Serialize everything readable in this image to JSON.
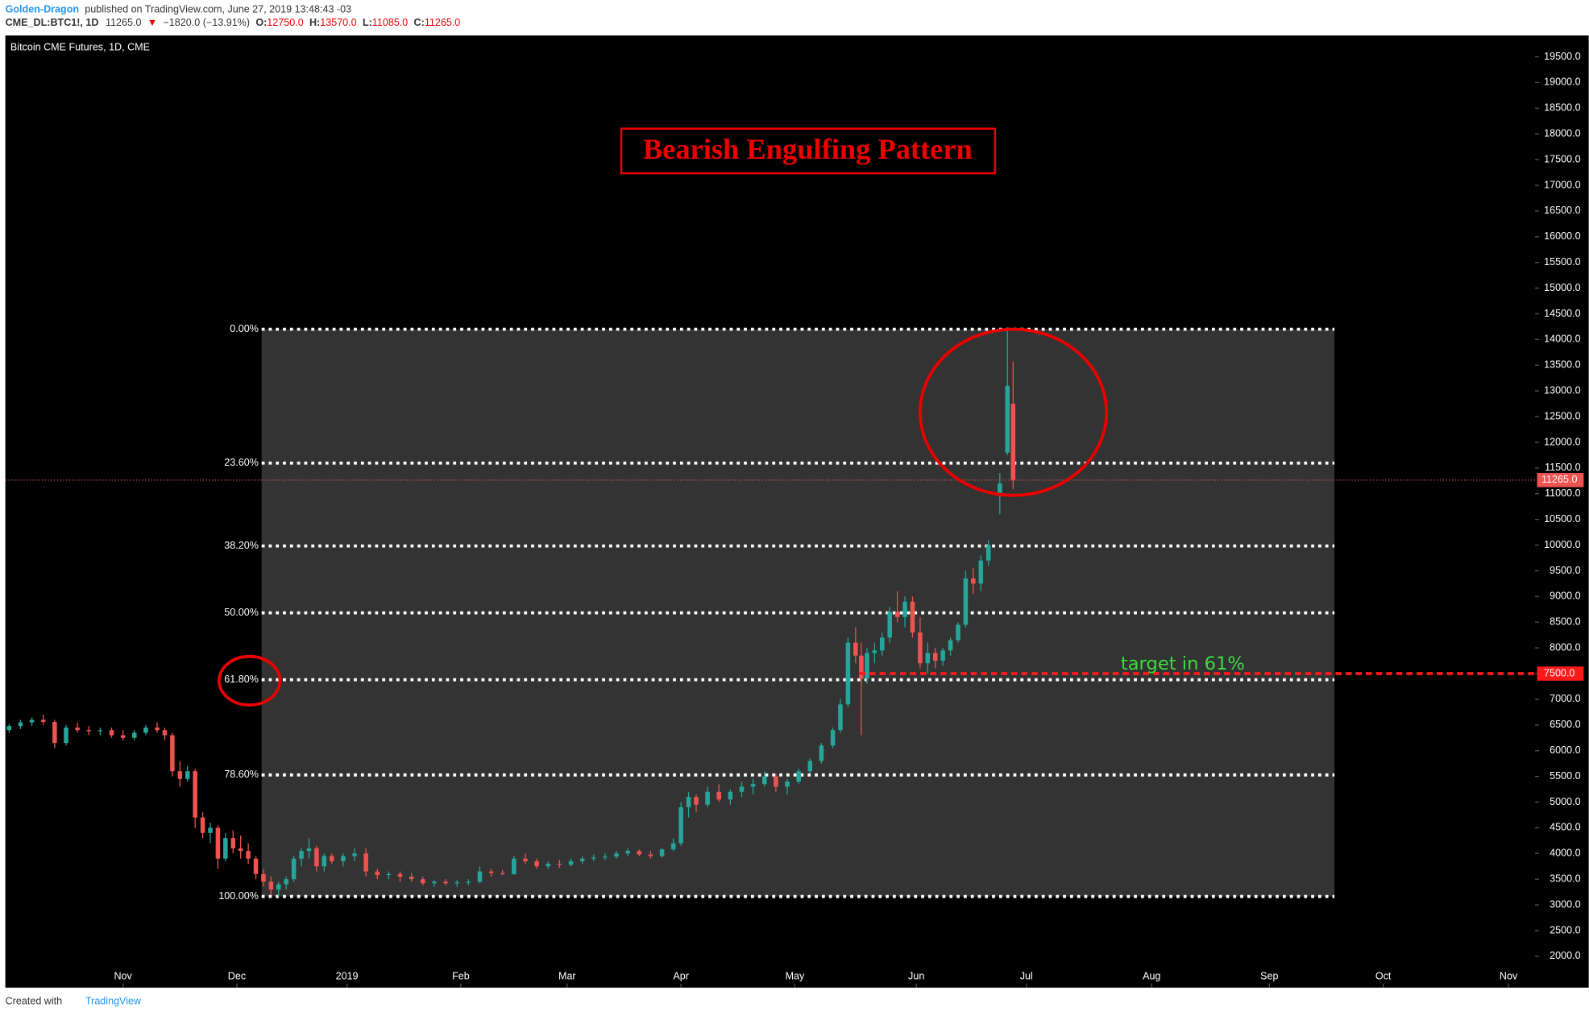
{
  "header": {
    "author": "Golden-Dragon",
    "published": "published on TradingView.com, June 27, 2019 13:48:43 -03",
    "symbol": "CME_DL:BTC1!, 1D",
    "last": "11265.0",
    "direction": "▼",
    "change": "−1820.0 (−13.91%)",
    "o_label": "O:",
    "o": "12750.0",
    "h_label": "H:",
    "h": "13570.0",
    "l_label": "L:",
    "l": "11085.0",
    "c_label": "C:",
    "c": "11265.0"
  },
  "footer": {
    "created": "Created with",
    "brand": "TradingView"
  },
  "chart_data": {
    "type": "candlestick",
    "title": "Bitcoin CME Futures, 1D, CME",
    "annotation": "Bearish Engulfing Pattern",
    "up_color": "#26a69a",
    "down_color": "#ef5350",
    "grid": false,
    "xlim": [
      -31,
      372
    ],
    "ylim": [
      1390,
      19915
    ],
    "xticks": [
      {
        "value": 0,
        "label": "Nov"
      },
      {
        "value": 30,
        "label": "Dec"
      },
      {
        "value": 59,
        "label": "2019"
      },
      {
        "value": 89,
        "label": "Feb"
      },
      {
        "value": 117,
        "label": "Mar"
      },
      {
        "value": 147,
        "label": "Apr"
      },
      {
        "value": 177,
        "label": "May"
      },
      {
        "value": 209,
        "label": "Jun"
      },
      {
        "value": 238,
        "label": "Jul"
      },
      {
        "value": 271,
        "label": "Aug"
      },
      {
        "value": 302,
        "label": "Sep"
      },
      {
        "value": 332,
        "label": "Oct"
      },
      {
        "value": 365,
        "label": "Nov"
      }
    ],
    "yticks": [
      {
        "value": 2000,
        "label": "2000.0"
      },
      {
        "value": 2500,
        "label": "2500.0"
      },
      {
        "value": 3000,
        "label": "3000.0"
      },
      {
        "value": 3500,
        "label": "3500.0"
      },
      {
        "value": 4000,
        "label": "4000.0"
      },
      {
        "value": 4500,
        "label": "4500.0"
      },
      {
        "value": 5000,
        "label": "5000.0"
      },
      {
        "value": 5500,
        "label": "5500.0"
      },
      {
        "value": 6000,
        "label": "6000.0"
      },
      {
        "value": 6500,
        "label": "6500.0"
      },
      {
        "value": 7000,
        "label": "7000.0"
      },
      {
        "value": 7500,
        "label": "7500.0"
      },
      {
        "value": 8000,
        "label": "8000.0"
      },
      {
        "value": 8500,
        "label": "8500.0"
      },
      {
        "value": 9000,
        "label": "9000.0"
      },
      {
        "value": 9500,
        "label": "9500.0"
      },
      {
        "value": 10000,
        "label": "10000.0"
      },
      {
        "value": 10500,
        "label": "10500.0"
      },
      {
        "value": 11000,
        "label": "11000.0"
      },
      {
        "value": 11500,
        "label": "11500.0"
      },
      {
        "value": 12000,
        "label": "12000.0"
      },
      {
        "value": 12500,
        "label": "12500.0"
      },
      {
        "value": 13000,
        "label": "13000.0"
      },
      {
        "value": 13500,
        "label": "13500.0"
      },
      {
        "value": 14000,
        "label": "14000.0"
      },
      {
        "value": 14500,
        "label": "14500.0"
      },
      {
        "value": 15000,
        "label": "15000.0"
      },
      {
        "value": 15500,
        "label": "15500.0"
      },
      {
        "value": 16000,
        "label": "16000.0"
      },
      {
        "value": 16500,
        "label": "16500.0"
      },
      {
        "value": 17000,
        "label": "17000.0"
      },
      {
        "value": 17500,
        "label": "17500.0"
      },
      {
        "value": 18000,
        "label": "18000.0"
      },
      {
        "value": 18500,
        "label": "18500.0"
      },
      {
        "value": 19000,
        "label": "19000.0"
      },
      {
        "value": 19500,
        "label": "19500.0"
      }
    ],
    "x": [
      -30,
      -27,
      -24,
      -21,
      -18,
      -15,
      -12,
      -9,
      -6,
      -3,
      0,
      3,
      6,
      9,
      11,
      13,
      15,
      17,
      19,
      21,
      23,
      25,
      27,
      29,
      31,
      33,
      35,
      37,
      39,
      41,
      43,
      45,
      47,
      49,
      51,
      53,
      55,
      58,
      61,
      64,
      67,
      70,
      73,
      76,
      79,
      82,
      85,
      88,
      91,
      94,
      97,
      100,
      103,
      106,
      109,
      112,
      115,
      118,
      121,
      124,
      127,
      130,
      133,
      136,
      139,
      142,
      145,
      147,
      149,
      151,
      154,
      157,
      160,
      163,
      166,
      169,
      172,
      175,
      178,
      181,
      184,
      187,
      189,
      191,
      193,
      194.5,
      196,
      198,
      200,
      202,
      204,
      206,
      208,
      210,
      212,
      214,
      216,
      218,
      220,
      222,
      224,
      226,
      228,
      231,
      233,
      234.5
    ],
    "open": [
      6400,
      6480,
      6550,
      6600,
      6560,
      6150,
      6450,
      6400,
      6380,
      6400,
      6300,
      6250,
      6350,
      6450,
      6400,
      6300,
      5600,
      5450,
      5600,
      4700,
      4400,
      4500,
      3900,
      4300,
      4100,
      4050,
      3900,
      3600,
      3450,
      3300,
      3400,
      3500,
      3900,
      4050,
      4100,
      3750,
      3950,
      3850,
      3950,
      4000,
      3650,
      3580,
      3600,
      3550,
      3500,
      3420,
      3450,
      3420,
      3440,
      3450,
      3650,
      3620,
      3600,
      3900,
      3850,
      3750,
      3800,
      3780,
      3850,
      3900,
      3920,
      3940,
      4000,
      4050,
      3980,
      3950,
      4080,
      4200,
      4900,
      5100,
      4950,
      5200,
      5050,
      5200,
      5300,
      5350,
      5500,
      5300,
      5400,
      5600,
      5800,
      6100,
      6400,
      6900,
      8100,
      7850,
      7400,
      7900,
      7950,
      8200,
      8700,
      8600,
      8900,
      8300,
      7700,
      7900,
      7750,
      7950,
      8150,
      8450,
      9350,
      9250,
      9700,
      10950,
      11800,
      12750
    ],
    "high": [
      6520,
      6600,
      6650,
      6700,
      6600,
      6500,
      6550,
      6480,
      6450,
      6450,
      6400,
      6400,
      6500,
      6550,
      6450,
      6350,
      5800,
      5700,
      5650,
      4800,
      4600,
      4550,
      4400,
      4450,
      4350,
      4200,
      3950,
      3700,
      3550,
      3450,
      3550,
      3950,
      4100,
      4300,
      4150,
      4000,
      4000,
      4000,
      4100,
      4100,
      3700,
      3650,
      3650,
      3620,
      3550,
      3480,
      3500,
      3480,
      3500,
      3750,
      3700,
      3680,
      3950,
      4000,
      3900,
      3850,
      3880,
      3900,
      3950,
      3980,
      4000,
      4050,
      4100,
      4080,
      4050,
      4100,
      4300,
      5000,
      5200,
      5150,
      5300,
      5350,
      5250,
      5400,
      5450,
      5600,
      5550,
      5450,
      5650,
      5850,
      6150,
      6450,
      7000,
      8200,
      8400,
      8100,
      8000,
      8100,
      8300,
      8800,
      9100,
      9000,
      9000,
      8600,
      8100,
      8000,
      8000,
      8200,
      8500,
      9500,
      9550,
      9800,
      10100,
      11400,
      14200,
      13570
    ],
    "low": [
      6350,
      6420,
      6480,
      6500,
      6050,
      6100,
      6350,
      6300,
      6300,
      6250,
      6200,
      6200,
      6300,
      6350,
      6200,
      5500,
      5300,
      5400,
      4500,
      4300,
      4200,
      3700,
      3850,
      4000,
      3900,
      3800,
      3500,
      3350,
      3200,
      3150,
      3300,
      3450,
      3750,
      3900,
      3650,
      3650,
      3800,
      3750,
      3850,
      3550,
      3500,
      3500,
      3450,
      3450,
      3380,
      3350,
      3380,
      3350,
      3380,
      3420,
      3550,
      3580,
      3580,
      3800,
      3700,
      3700,
      3720,
      3750,
      3800,
      3850,
      3870,
      3900,
      3950,
      3950,
      3900,
      3920,
      4050,
      4150,
      4700,
      4800,
      4900,
      5000,
      4950,
      5100,
      5150,
      5300,
      5200,
      5150,
      5350,
      5550,
      5750,
      6050,
      6350,
      6850,
      7700,
      6300,
      7300,
      7700,
      7850,
      8100,
      8500,
      8400,
      8200,
      7600,
      7500,
      7600,
      7650,
      7850,
      8100,
      8400,
      9050,
      9100,
      9600,
      10600,
      11750,
      11085
    ],
    "close": [
      6480,
      6550,
      6600,
      6560,
      6150,
      6450,
      6400,
      6380,
      6400,
      6300,
      6250,
      6350,
      6450,
      6400,
      6300,
      5600,
      5450,
      5600,
      4700,
      4400,
      4500,
      3900,
      4300,
      4100,
      4050,
      3900,
      3600,
      3450,
      3300,
      3400,
      3500,
      3900,
      4050,
      4100,
      3750,
      3950,
      3850,
      3950,
      4000,
      3650,
      3580,
      3600,
      3550,
      3500,
      3420,
      3450,
      3420,
      3440,
      3450,
      3650,
      3620,
      3600,
      3900,
      3850,
      3750,
      3800,
      3780,
      3850,
      3900,
      3920,
      3940,
      4000,
      4050,
      3980,
      3950,
      4080,
      4200,
      4900,
      5100,
      4950,
      5200,
      5050,
      5200,
      5300,
      5350,
      5500,
      5300,
      5400,
      5600,
      5800,
      6100,
      6400,
      6900,
      8100,
      7850,
      7400,
      7900,
      7950,
      8200,
      8700,
      8600,
      8900,
      8300,
      7700,
      7900,
      7750,
      7950,
      8150,
      8450,
      9350,
      9250,
      9700,
      10000,
      11200,
      13100,
      11265
    ],
    "fib": {
      "levels": [
        {
          "label": "0.00%",
          "value": 14200
        },
        {
          "label": "23.60%",
          "value": 11595
        },
        {
          "label": "38.20%",
          "value": 9983
        },
        {
          "label": "50.00%",
          "value": 8682
        },
        {
          "label": "61.80%",
          "value": 7381
        },
        {
          "label": "78.60%",
          "value": 5528
        },
        {
          "label": "100.00%",
          "value": 3163
        }
      ]
    },
    "last_price": {
      "value": 11265,
      "label": "11265.0",
      "color": "#ef5350"
    },
    "target": {
      "value": 7500,
      "label": "7500.0",
      "text": "target in 61%",
      "color": "#ff1a1a",
      "text_color": "#3ddc3d"
    }
  }
}
